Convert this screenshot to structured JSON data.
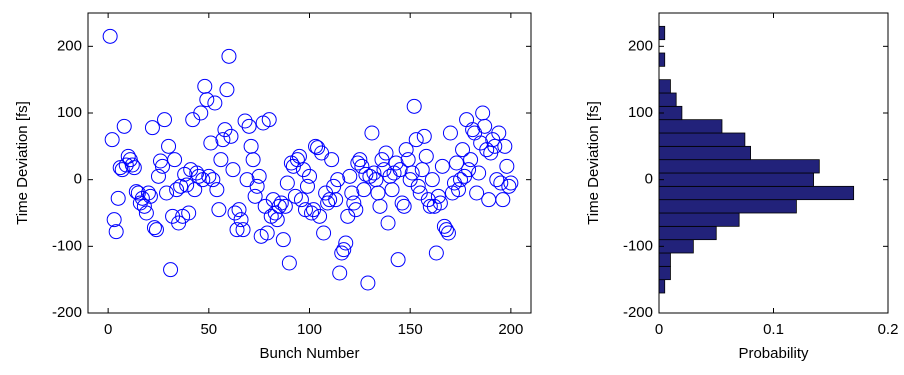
{
  "chart_data": [
    {
      "type": "scatter",
      "xlabel": "Bunch Number",
      "ylabel": "Time Deviation [fs]",
      "xlim": [
        -10,
        210
      ],
      "ylim": [
        -200,
        250
      ],
      "xticks": [
        0,
        50,
        100,
        150,
        200
      ],
      "yticks": [
        -200,
        -100,
        0,
        100,
        200
      ],
      "series": [
        {
          "color": "#0000ff",
          "x": [
            1,
            2,
            3,
            4,
            5,
            6,
            7,
            8,
            9,
            10,
            11,
            12,
            13,
            14,
            15,
            16,
            17,
            18,
            19,
            20,
            21,
            22,
            23,
            24,
            25,
            26,
            27,
            28,
            29,
            30,
            31,
            32,
            33,
            34,
            35,
            36,
            37,
            38,
            39,
            40,
            41,
            42,
            43,
            44,
            45,
            46,
            47,
            48,
            49,
            50,
            51,
            52,
            53,
            54,
            55,
            56,
            57,
            58,
            59,
            60,
            61,
            62,
            63,
            64,
            65,
            66,
            67,
            68,
            69,
            70,
            71,
            72,
            73,
            74,
            75,
            76,
            77,
            78,
            79,
            80,
            81,
            82,
            83,
            84,
            85,
            86,
            87,
            88,
            89,
            90,
            91,
            92,
            93,
            94,
            95,
            96,
            97,
            98,
            99,
            100,
            101,
            102,
            103,
            104,
            105,
            106,
            107,
            108,
            109,
            110,
            111,
            112,
            113,
            114,
            115,
            116,
            117,
            118,
            119,
            120,
            121,
            122,
            123,
            124,
            125,
            126,
            127,
            128,
            129,
            130,
            131,
            132,
            133,
            134,
            135,
            136,
            137,
            138,
            139,
            140,
            141,
            142,
            143,
            144,
            145,
            146,
            147,
            148,
            149,
            150,
            151,
            152,
            153,
            154,
            155,
            156,
            157,
            158,
            159,
            160,
            161,
            162,
            163,
            164,
            165,
            166,
            167,
            168,
            169,
            170,
            171,
            172,
            173,
            174,
            175,
            176,
            177,
            178,
            179,
            180,
            181,
            182,
            183,
            184,
            185,
            186,
            187,
            188,
            189,
            190,
            191,
            192,
            193,
            194,
            195,
            196,
            197,
            198,
            199,
            200
          ],
          "values": [
            215,
            60,
            -60,
            -78,
            -28,
            18,
            15,
            80,
            22,
            35,
            30,
            22,
            18,
            -18,
            -20,
            -35,
            -28,
            -40,
            -50,
            -20,
            -25,
            78,
            -72,
            -75,
            5,
            28,
            20,
            90,
            -20,
            50,
            -135,
            -55,
            30,
            -15,
            -65,
            -10,
            -55,
            8,
            -8,
            -50,
            15,
            90,
            -15,
            10,
            5,
            100,
            0,
            140,
            120,
            5,
            55,
            0,
            115,
            -15,
            -45,
            30,
            60,
            75,
            135,
            185,
            65,
            15,
            -50,
            -75,
            -45,
            -60,
            -75,
            88,
            0,
            80,
            50,
            30,
            -25,
            -10,
            5,
            -85,
            85,
            -40,
            -80,
            90,
            -55,
            -30,
            -50,
            -60,
            -40,
            -35,
            -90,
            -40,
            -5,
            -125,
            25,
            20,
            -25,
            30,
            35,
            -30,
            15,
            -45,
            -10,
            5,
            -50,
            -45,
            50,
            48,
            -55,
            40,
            -80,
            -20,
            -35,
            -30,
            30,
            -10,
            -30,
            0,
            -140,
            -110,
            -105,
            -95,
            -55,
            5,
            -20,
            -35,
            -45,
            25,
            30,
            20,
            -15,
            8,
            -155,
            5,
            70,
            10,
            0,
            -20,
            -40,
            30,
            15,
            40,
            -65,
            5,
            -15,
            10,
            25,
            -120,
            15,
            -35,
            -40,
            45,
            30,
            0,
            10,
            110,
            60,
            -10,
            -20,
            15,
            65,
            35,
            -30,
            -40,
            0,
            -40,
            -110,
            -25,
            -35,
            20,
            -70,
            -75,
            -80,
            70,
            -20,
            -5,
            25,
            -15,
            0,
            45,
            5,
            90,
            15,
            30,
            75,
            70,
            -20,
            10,
            55,
            100,
            80,
            45,
            -30,
            40,
            60,
            50,
            0,
            70,
            -5,
            -30,
            50,
            20,
            -10,
            -5
          ]
        }
      ]
    },
    {
      "type": "histogram",
      "orientation": "horizontal",
      "xlabel": "Probability",
      "ylabel": "Time Deviation [fs]",
      "xlim": [
        0,
        0.2
      ],
      "ylim": [
        -200,
        250
      ],
      "xticks": [
        0,
        0.1,
        0.2
      ],
      "yticks": [
        -200,
        -100,
        0,
        100,
        200
      ],
      "color": "#22227a",
      "bins": [
        -170,
        -150,
        -130,
        -110,
        -90,
        -70,
        -50,
        -30,
        -10,
        10,
        30,
        50,
        70,
        90,
        110,
        130,
        150,
        170,
        190,
        210,
        230
      ],
      "values": [
        0.005,
        0.01,
        0.01,
        0.03,
        0.05,
        0.07,
        0.12,
        0.17,
        0.135,
        0.14,
        0.08,
        0.075,
        0.055,
        0.02,
        0.015,
        0.01,
        0,
        0.005,
        0,
        0.005
      ]
    }
  ]
}
